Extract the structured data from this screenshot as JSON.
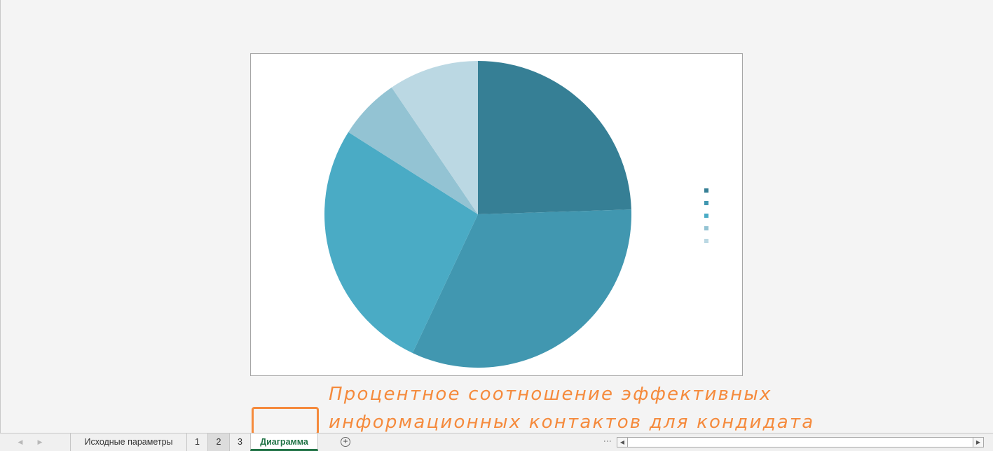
{
  "chart_data": {
    "type": "pie",
    "values": [
      24.5,
      32.5,
      27,
      6.5,
      9.5
    ],
    "colors": [
      "#367f95",
      "#4197b0",
      "#4aabc5",
      "#93c3d3",
      "#bbd8e3"
    ],
    "start_angle_deg": 0,
    "legend": {
      "placement": "right",
      "markers": 5
    }
  },
  "caption": {
    "line1": "Процентное соотношение эффективных",
    "line2": "информационных контактов для кондидата"
  },
  "tabs": {
    "nav_prev": "◀",
    "nav_next": "▶",
    "items": [
      {
        "label": "Исходные параметры",
        "state": "normal"
      },
      {
        "label": "1",
        "state": "normal"
      },
      {
        "label": "2",
        "state": "hover"
      },
      {
        "label": "3",
        "state": "normal"
      },
      {
        "label": "Диаграмма",
        "state": "active"
      }
    ],
    "add_icon": "+",
    "split_icon": "⋮"
  },
  "scrollbar": {
    "left_arrow": "◀",
    "right_arrow": "▶"
  }
}
